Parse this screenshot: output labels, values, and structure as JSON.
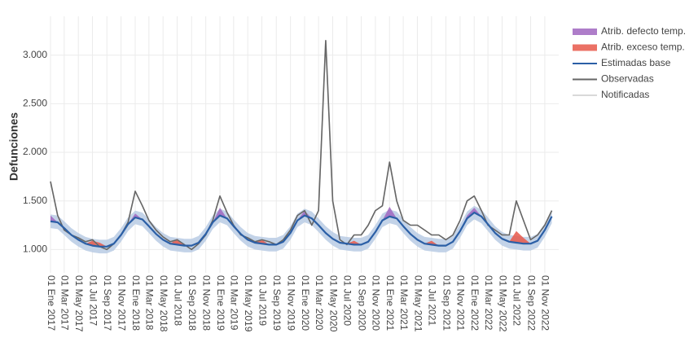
{
  "chart_data": {
    "type": "line",
    "y_label": "Defunciones",
    "x": [
      "2017-01-01",
      "2017-02-01",
      "2017-03-01",
      "2017-04-01",
      "2017-05-01",
      "2017-06-01",
      "2017-07-01",
      "2017-08-01",
      "2017-09-01",
      "2017-10-01",
      "2017-11-01",
      "2017-12-01",
      "2018-01-01",
      "2018-02-01",
      "2018-03-01",
      "2018-04-01",
      "2018-05-01",
      "2018-06-01",
      "2018-07-01",
      "2018-08-01",
      "2018-09-01",
      "2018-10-01",
      "2018-11-01",
      "2018-12-01",
      "2019-01-01",
      "2019-02-01",
      "2019-03-01",
      "2019-04-01",
      "2019-05-01",
      "2019-06-01",
      "2019-07-01",
      "2019-08-01",
      "2019-09-01",
      "2019-10-01",
      "2019-11-01",
      "2019-12-01",
      "2020-01-01",
      "2020-02-01",
      "2020-03-01",
      "2020-04-01",
      "2020-05-01",
      "2020-06-01",
      "2020-07-01",
      "2020-08-01",
      "2020-09-01",
      "2020-10-01",
      "2020-11-01",
      "2020-12-01",
      "2021-01-01",
      "2021-02-01",
      "2021-03-01",
      "2021-04-01",
      "2021-05-01",
      "2021-06-01",
      "2021-07-01",
      "2021-08-01",
      "2021-09-01",
      "2021-10-01",
      "2021-11-01",
      "2021-12-01",
      "2022-01-01",
      "2022-02-01",
      "2022-03-01",
      "2022-04-01",
      "2022-05-01",
      "2022-06-01",
      "2022-07-01",
      "2022-08-01",
      "2022-09-01",
      "2022-10-01",
      "2022-11-01",
      "2022-12-01"
    ],
    "xlim": [
      "2017-01-01",
      "2022-12-31"
    ],
    "xticks": [
      {
        "value": "2017-01-01",
        "label": "01 Ene 2017"
      },
      {
        "value": "2017-03-01",
        "label": "01 Mar 2017"
      },
      {
        "value": "2017-05-01",
        "label": "01 May 2017"
      },
      {
        "value": "2017-07-01",
        "label": "01 Jul 2017"
      },
      {
        "value": "2017-09-01",
        "label": "01 Sep 2017"
      },
      {
        "value": "2017-11-01",
        "label": "01 Nov 2017"
      },
      {
        "value": "2018-01-01",
        "label": "01 Ene 2018"
      },
      {
        "value": "2018-03-01",
        "label": "01 Mar 2018"
      },
      {
        "value": "2018-05-01",
        "label": "01 May 2018"
      },
      {
        "value": "2018-07-01",
        "label": "01 Jul 2018"
      },
      {
        "value": "2018-09-01",
        "label": "01 Sep 2018"
      },
      {
        "value": "2018-11-01",
        "label": "01 Nov 2018"
      },
      {
        "value": "2019-01-01",
        "label": "01 Ene 2019"
      },
      {
        "value": "2019-03-01",
        "label": "01 Mar 2019"
      },
      {
        "value": "2019-05-01",
        "label": "01 May 2019"
      },
      {
        "value": "2019-07-01",
        "label": "01 Jul 2019"
      },
      {
        "value": "2019-09-01",
        "label": "01 Sep 2019"
      },
      {
        "value": "2019-11-01",
        "label": "01 Nov 2019"
      },
      {
        "value": "2020-01-01",
        "label": "01 Ene 2020"
      },
      {
        "value": "2020-03-01",
        "label": "01 Mar 2020"
      },
      {
        "value": "2020-05-01",
        "label": "01 May 2020"
      },
      {
        "value": "2020-07-01",
        "label": "01 Jul 2020"
      },
      {
        "value": "2020-09-01",
        "label": "01 Sep 2020"
      },
      {
        "value": "2020-11-01",
        "label": "01 Nov 2020"
      },
      {
        "value": "2021-01-01",
        "label": "01 Ene 2021"
      },
      {
        "value": "2021-03-01",
        "label": "01 Mar 2021"
      },
      {
        "value": "2021-05-01",
        "label": "01 May 2021"
      },
      {
        "value": "2021-07-01",
        "label": "01 Jul 2021"
      },
      {
        "value": "2021-09-01",
        "label": "01 Sep 2021"
      },
      {
        "value": "2021-11-01",
        "label": "01 Nov 2021"
      },
      {
        "value": "2022-01-01",
        "label": "01 Ene 2022"
      },
      {
        "value": "2022-03-01",
        "label": "01 Mar 2022"
      },
      {
        "value": "2022-05-01",
        "label": "01 May 2022"
      },
      {
        "value": "2022-07-01",
        "label": "01 Jul 2022"
      },
      {
        "value": "2022-09-01",
        "label": "01 Sep 2022"
      },
      {
        "value": "2022-11-01",
        "label": "01 Nov 2022"
      }
    ],
    "ylim": [
      760,
      3400
    ],
    "yticks": [
      {
        "value": 1000,
        "label": "1.000"
      },
      {
        "value": 1500,
        "label": "1.500"
      },
      {
        "value": 2000,
        "label": "2.000"
      },
      {
        "value": 2500,
        "label": "2.500"
      },
      {
        "value": 3000,
        "label": "3.000"
      }
    ],
    "grid": true,
    "legend": "right",
    "series": [
      {
        "name": "Atrib. defecto temp.",
        "kind": "area",
        "color": "#a066c0",
        "values": [
          60,
          0,
          0,
          0,
          0,
          0,
          0,
          0,
          0,
          0,
          0,
          0,
          40,
          0,
          0,
          0,
          0,
          0,
          0,
          0,
          0,
          0,
          0,
          0,
          80,
          0,
          0,
          0,
          0,
          0,
          0,
          0,
          0,
          0,
          0,
          0,
          50,
          0,
          0,
          0,
          0,
          0,
          0,
          0,
          0,
          0,
          0,
          0,
          100,
          0,
          0,
          0,
          0,
          0,
          0,
          0,
          0,
          0,
          0,
          30,
          50,
          0,
          0,
          0,
          0,
          0,
          0,
          0,
          0,
          0,
          0,
          0
        ]
      },
      {
        "name": "Atrib. exceso temp.",
        "kind": "area",
        "color": "#e8584a",
        "values": [
          0,
          0,
          0,
          0,
          0,
          0,
          50,
          40,
          0,
          0,
          0,
          0,
          0,
          0,
          0,
          0,
          0,
          0,
          60,
          0,
          0,
          0,
          0,
          0,
          0,
          0,
          0,
          0,
          0,
          0,
          40,
          0,
          0,
          0,
          0,
          0,
          0,
          0,
          0,
          0,
          0,
          0,
          0,
          40,
          0,
          0,
          0,
          0,
          0,
          0,
          0,
          0,
          0,
          0,
          40,
          0,
          0,
          0,
          0,
          0,
          0,
          0,
          0,
          0,
          0,
          0,
          120,
          60,
          0,
          0,
          0,
          0
        ]
      },
      {
        "name": "Estimadas base",
        "kind": "line",
        "color": "#2b5fa6",
        "band_color": "#b9cbe4",
        "values": [
          1290,
          1280,
          1220,
          1150,
          1100,
          1060,
          1040,
          1030,
          1030,
          1060,
          1150,
          1260,
          1330,
          1310,
          1240,
          1160,
          1100,
          1060,
          1050,
          1040,
          1040,
          1070,
          1160,
          1280,
          1350,
          1320,
          1240,
          1160,
          1100,
          1070,
          1060,
          1050,
          1050,
          1080,
          1170,
          1300,
          1350,
          1320,
          1250,
          1170,
          1110,
          1070,
          1060,
          1050,
          1050,
          1080,
          1180,
          1300,
          1340,
          1320,
          1240,
          1160,
          1100,
          1060,
          1050,
          1040,
          1040,
          1080,
          1190,
          1320,
          1380,
          1340,
          1260,
          1170,
          1110,
          1080,
          1070,
          1060,
          1060,
          1090,
          1200,
          1340
        ],
        "lower": [
          1220,
          1210,
          1150,
          1080,
          1030,
          990,
          970,
          960,
          960,
          990,
          1080,
          1190,
          1260,
          1240,
          1170,
          1090,
          1030,
          990,
          980,
          970,
          970,
          1000,
          1090,
          1210,
          1280,
          1250,
          1170,
          1090,
          1030,
          1000,
          990,
          980,
          980,
          1010,
          1100,
          1230,
          1280,
          1250,
          1180,
          1100,
          1040,
          1000,
          990,
          980,
          980,
          1010,
          1110,
          1230,
          1270,
          1250,
          1170,
          1090,
          1030,
          990,
          980,
          970,
          970,
          1010,
          1120,
          1250,
          1310,
          1270,
          1190,
          1100,
          1040,
          1010,
          1000,
          990,
          990,
          1020,
          1130,
          1270
        ],
        "upper": [
          1360,
          1350,
          1290,
          1220,
          1170,
          1130,
          1110,
          1100,
          1100,
          1130,
          1220,
          1330,
          1400,
          1380,
          1310,
          1230,
          1170,
          1130,
          1120,
          1110,
          1110,
          1140,
          1230,
          1350,
          1420,
          1390,
          1310,
          1230,
          1170,
          1140,
          1130,
          1120,
          1120,
          1150,
          1240,
          1370,
          1420,
          1390,
          1320,
          1240,
          1180,
          1140,
          1130,
          1120,
          1120,
          1150,
          1250,
          1370,
          1410,
          1390,
          1310,
          1230,
          1170,
          1130,
          1120,
          1110,
          1110,
          1150,
          1260,
          1390,
          1450,
          1410,
          1330,
          1240,
          1180,
          1150,
          1140,
          1130,
          1130,
          1160,
          1270,
          1410
        ]
      },
      {
        "name": "Observadas",
        "kind": "line",
        "color": "#666666",
        "values": [
          1700,
          1350,
          1200,
          1150,
          1120,
          1080,
          1100,
          1030,
          1000,
          1060,
          1150,
          1280,
          1600,
          1450,
          1300,
          1200,
          1130,
          1080,
          1100,
          1050,
          1000,
          1060,
          1150,
          1300,
          1550,
          1380,
          1250,
          1150,
          1120,
          1080,
          1100,
          1080,
          1050,
          1100,
          1200,
          1350,
          1400,
          1250,
          1400,
          3150,
          1500,
          1100,
          1050,
          1150,
          1150,
          1250,
          1400,
          1450,
          1900,
          1500,
          1300,
          1250,
          1250,
          1200,
          1150,
          1150,
          1100,
          1150,
          1300,
          1500,
          1550,
          1400,
          1250,
          1200,
          1150,
          1150,
          1500,
          1300,
          1100,
          1150,
          1250,
          1400
        ]
      },
      {
        "name": "Notificadas",
        "kind": "line",
        "color": "#d9d9d9",
        "values": [
          1700,
          1350,
          1200,
          1150,
          1120,
          1080,
          1100,
          1030,
          1000,
          1060,
          1150,
          1280,
          1600,
          1450,
          1300,
          1200,
          1130,
          1080,
          1100,
          1050,
          1000,
          1060,
          1150,
          1300,
          1550,
          1380,
          1250,
          1150,
          1120,
          1080,
          1100,
          1080,
          1050,
          1100,
          1200,
          1350,
          1400,
          1250,
          1400,
          3150,
          1500,
          1100,
          1050,
          1150,
          1150,
          1250,
          1400,
          1450,
          1900,
          1500,
          1300,
          1250,
          1250,
          1200,
          1150,
          1150,
          1100,
          1150,
          1300,
          1500,
          1550,
          1400,
          1250,
          1200,
          1150,
          1150,
          1500,
          1300,
          1100,
          1150,
          1250,
          1400
        ]
      }
    ]
  }
}
